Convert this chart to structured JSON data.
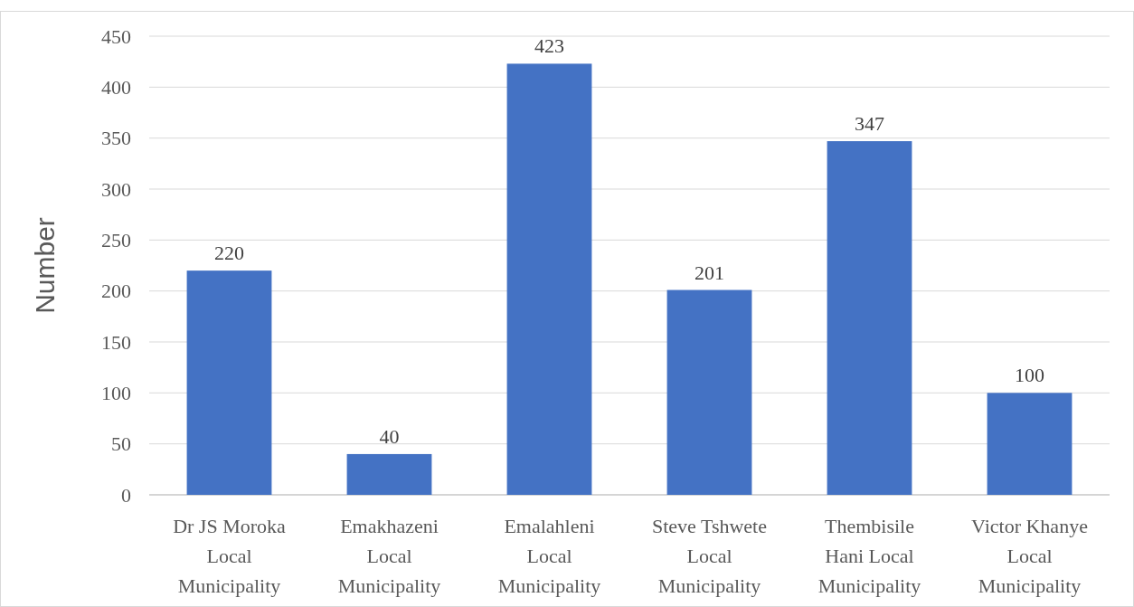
{
  "chart_data": {
    "type": "bar",
    "ylabel": "Number",
    "categories": [
      "Dr JS Moroka Local Municipality",
      "Emakhazeni Local Municipality",
      "Emalahleni Local Municipality",
      "Steve Tshwete Local Municipality",
      "Thembisile Hani Local Municipality",
      "Victor Khanye Local Municipality"
    ],
    "values": [
      220,
      40,
      423,
      201,
      347,
      100
    ],
    "color": "#4472c4",
    "ylim": [
      0,
      450
    ],
    "yticks": [
      0,
      50,
      100,
      150,
      200,
      250,
      300,
      350,
      400,
      450
    ],
    "grid": "y",
    "data_labels": true
  }
}
